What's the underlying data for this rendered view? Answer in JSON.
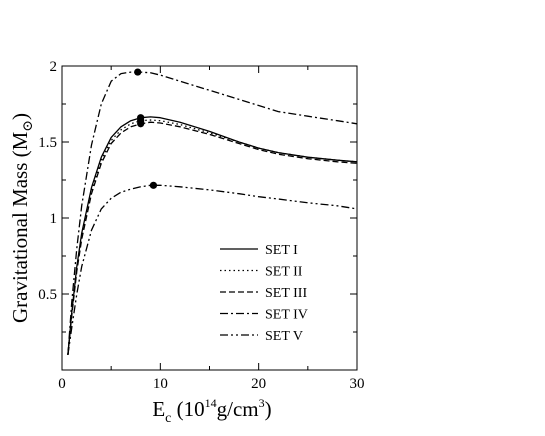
{
  "chart_data": {
    "type": "line",
    "title": "",
    "xlabel": {
      "main": "E",
      "sub": "c",
      "pre": " (10",
      "sup": "14",
      "mid": "g/cm",
      "sup2": "3",
      "post": ")"
    },
    "ylabel": {
      "main": "Gravitational Mass (M",
      "sym": "⊙",
      "post": ")"
    },
    "xlim": [
      0,
      30
    ],
    "ylim": [
      0,
      2
    ],
    "xticks": [
      0,
      10,
      20,
      30
    ],
    "xtick_labels": [
      "0",
      "10",
      "20",
      "30"
    ],
    "yticks": [
      0.5,
      1,
      1.5,
      2
    ],
    "ytick_labels": [
      "0.5",
      "1",
      "1.5",
      "2"
    ],
    "grid": false,
    "legend_position": "lower-right",
    "series": [
      {
        "name": "SET I",
        "style": "solid",
        "x": [
          0.6,
          1,
          1.5,
          2,
          3,
          4,
          5,
          6,
          7,
          8,
          9,
          10,
          12,
          15,
          18,
          20,
          22,
          25,
          28,
          30
        ],
        "y": [
          0.1,
          0.38,
          0.68,
          0.9,
          1.2,
          1.4,
          1.53,
          1.6,
          1.64,
          1.66,
          1.665,
          1.66,
          1.63,
          1.57,
          1.5,
          1.46,
          1.43,
          1.4,
          1.38,
          1.37
        ],
        "max_point": [
          8.0,
          1.66
        ]
      },
      {
        "name": "SET II",
        "style": "dotted",
        "x": [
          0.6,
          1,
          1.5,
          2,
          3,
          4,
          5,
          6,
          7,
          8,
          9,
          10,
          12,
          15,
          18,
          20,
          22,
          25,
          28,
          30
        ],
        "y": [
          0.1,
          0.37,
          0.66,
          0.88,
          1.18,
          1.38,
          1.51,
          1.58,
          1.62,
          1.64,
          1.645,
          1.64,
          1.615,
          1.56,
          1.5,
          1.46,
          1.43,
          1.4,
          1.38,
          1.37
        ],
        "max_point": [
          8.0,
          1.64
        ]
      },
      {
        "name": "SET III",
        "style": "dashed",
        "x": [
          0.6,
          1,
          1.5,
          2,
          3,
          4,
          5,
          6,
          7,
          8,
          9,
          10,
          12,
          15,
          18,
          20,
          22,
          25,
          28,
          30
        ],
        "y": [
          0.1,
          0.36,
          0.65,
          0.86,
          1.16,
          1.36,
          1.49,
          1.56,
          1.6,
          1.62,
          1.63,
          1.625,
          1.6,
          1.55,
          1.49,
          1.45,
          1.42,
          1.39,
          1.37,
          1.36
        ],
        "max_point": [
          8.0,
          1.62
        ]
      },
      {
        "name": "SET IV",
        "style": "dashdot",
        "x": [
          0.6,
          1,
          1.5,
          2,
          3,
          4,
          5,
          6,
          7,
          8,
          9,
          10,
          12,
          15,
          18,
          20,
          22,
          25,
          28,
          30
        ],
        "y": [
          0.1,
          0.45,
          0.8,
          1.08,
          1.48,
          1.75,
          1.9,
          1.95,
          1.96,
          1.96,
          1.955,
          1.94,
          1.9,
          1.84,
          1.78,
          1.74,
          1.7,
          1.67,
          1.64,
          1.62
        ],
        "max_point": [
          7.7,
          1.96
        ]
      },
      {
        "name": "SET V",
        "style": "dashdotdot",
        "x": [
          0.6,
          1,
          1.5,
          2,
          3,
          4,
          5,
          6,
          7,
          8,
          9,
          10,
          12,
          15,
          18,
          20,
          22,
          25,
          28,
          30
        ],
        "y": [
          0.1,
          0.28,
          0.5,
          0.68,
          0.92,
          1.06,
          1.13,
          1.17,
          1.19,
          1.205,
          1.215,
          1.215,
          1.205,
          1.185,
          1.16,
          1.14,
          1.125,
          1.1,
          1.08,
          1.06
        ],
        "max_point": [
          9.3,
          1.215
        ]
      }
    ]
  }
}
